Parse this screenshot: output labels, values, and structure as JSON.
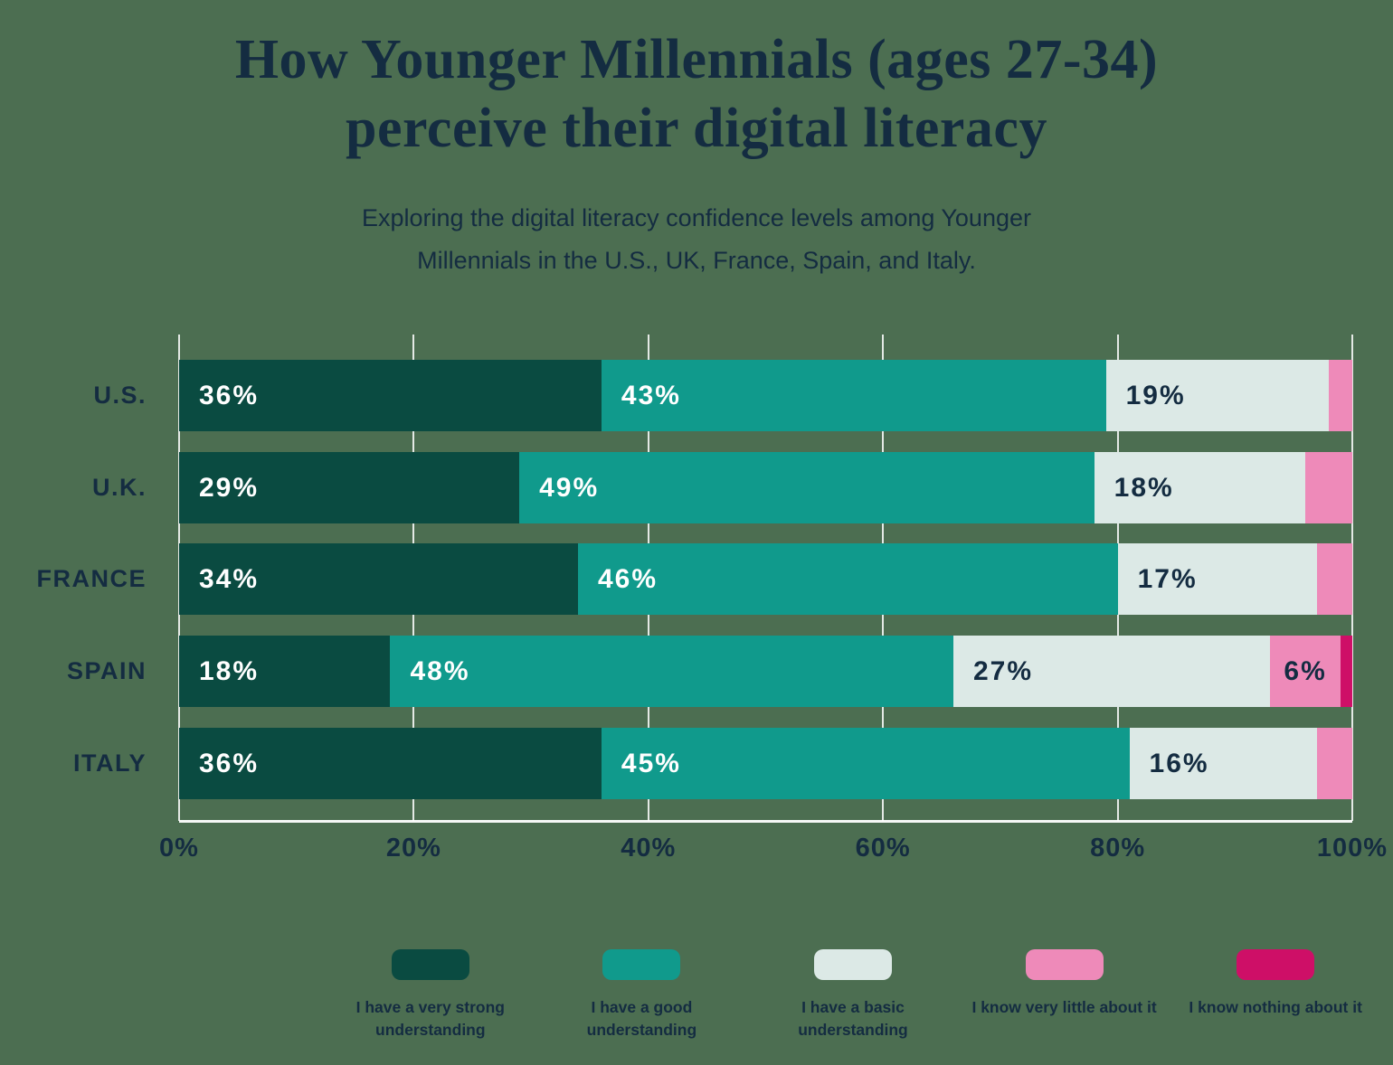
{
  "background_color": "#4c6e51",
  "text_color": "#142c41",
  "gridline_color": "rgba(255,255,255,0.85)",
  "title": {
    "line1": "How Younger Millennials (ages 27-34)",
    "line2": "perceive their digital literacy"
  },
  "subtitle": {
    "line1": "Exploring the digital literacy confidence levels among Younger",
    "line2": "Millennials in the U.S., UK, France, Spain, and Italy."
  },
  "chart_data": {
    "type": "bar",
    "stacked": true,
    "orientation": "horizontal",
    "categories": [
      "U.S.",
      "U.K.",
      "FRANCE",
      "SPAIN",
      "ITALY"
    ],
    "series": [
      {
        "name": "I have a very strong understanding",
        "color": "#0a4b41",
        "label_color": "#ffffff",
        "values": [
          36,
          29,
          34,
          18,
          36
        ]
      },
      {
        "name": "I have a good understanding",
        "color": "#109a8c",
        "label_color": "#ffffff",
        "values": [
          43,
          49,
          46,
          48,
          45
        ]
      },
      {
        "name": "I have a basic understanding",
        "color": "#dce9e6",
        "label_color": "#142c41",
        "values": [
          19,
          18,
          17,
          27,
          16
        ]
      },
      {
        "name": "I know very little about it",
        "color": "#ee8ab9",
        "label_color": "#142c41",
        "values": [
          2,
          4,
          3,
          6,
          3
        ]
      },
      {
        "name": "I know nothing about it",
        "color": "#ce0f67",
        "label_color": "#142c41",
        "values": [
          0,
          0,
          0,
          1,
          0
        ]
      }
    ],
    "value_suffix": "%",
    "min_value_to_show_label": 6,
    "x_ticks": [
      "0%",
      "20%",
      "40%",
      "60%",
      "80%",
      "100%"
    ],
    "x_tick_values": [
      0,
      20,
      40,
      60,
      80,
      100
    ],
    "xlim": [
      0,
      100
    ],
    "grid": true,
    "legend_position": "bottom"
  }
}
